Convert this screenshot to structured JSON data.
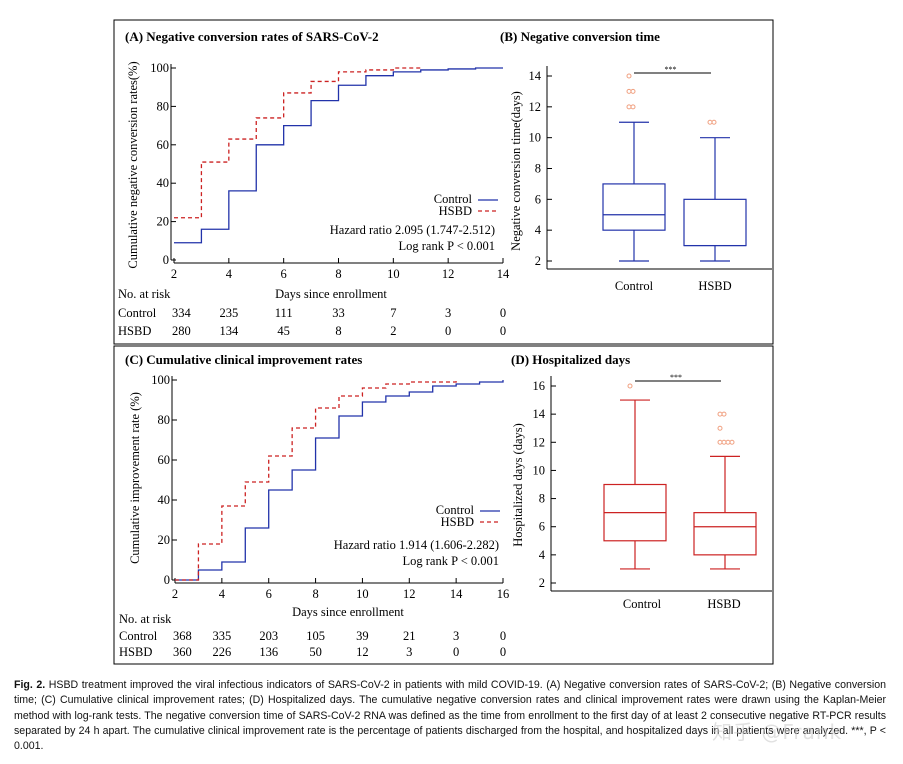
{
  "figure": {
    "panels": {
      "A": {
        "title": "(A) Negative conversion rates of SARS-CoV-2",
        "ylabel": "Cumulative negative conversion rates(%)",
        "xlabel": "Days since enrollment",
        "legend": [
          "Control",
          "HSBD"
        ],
        "hazard": "Hazard ratio 2.095 (1.747-2.512)",
        "logrank": "Log rank P < 0.001",
        "risk_header": "No. at risk",
        "risk_rows": [
          {
            "label": "Control",
            "values": [
              "334",
              "235",
              "111",
              "33",
              "7",
              "3",
              "0"
            ]
          },
          {
            "label": "HSBD",
            "values": [
              "280",
              "134",
              "45",
              "8",
              "2",
              "0",
              "0"
            ]
          }
        ]
      },
      "B": {
        "title": "(B) Negative conversion time",
        "ylabel": "Negative conversion time(days)",
        "sig": "***",
        "groups": [
          "Control",
          "HSBD"
        ]
      },
      "C": {
        "title": "(C) Cumulative clinical improvement rates",
        "ylabel": "Cumulative improvement rate (%)",
        "xlabel": "Days since enrollment",
        "legend": [
          "Control",
          "HSBD"
        ],
        "hazard": "Hazard ratio 1.914 (1.606-2.282)",
        "logrank": "Log rank P < 0.001",
        "risk_header": "No. at risk",
        "risk_rows": [
          {
            "label": "Control",
            "values": [
              "368",
              "335",
              "203",
              "105",
              "39",
              "21",
              "3",
              "0"
            ]
          },
          {
            "label": "HSBD",
            "values": [
              "360",
              "226",
              "136",
              "50",
              "12",
              "3",
              "0",
              "0"
            ]
          }
        ]
      },
      "D": {
        "title": "(D) Hospitalized days",
        "ylabel": "Hospitalized days (days)",
        "sig": "***",
        "groups": [
          "Control",
          "HSBD"
        ]
      }
    },
    "colors": {
      "control": "#2233aa",
      "hsbd": "#cc2222",
      "outlier": "#f0a080"
    }
  },
  "caption": {
    "label": "Fig. 2.",
    "text": "HSBD treatment improved the viral infectious indicators of SARS-CoV-2 in patients with mild COVID-19. (A) Negative conversion rates of SARS-CoV-2; (B) Negative conversion time; (C) Cumulative clinical improvement rates; (D) Hospitalized days. The cumulative negative conversion rates and clinical improvement rates were drawn using the Kaplan-Meier method with log-rank tests. The negative conversion time of SARS-CoV-2 RNA was defined as the time from enrollment to the first day of at least 2 consecutive negative RT-PCR results separated by 24 h apart. The cumulative clinical improvement rate is the percentage of patients discharged from the hospital, and hospitalized days in all patients were analyzed. ***, P < 0.001.",
    "watermark": "知乎 @Frank"
  },
  "chart_data": [
    {
      "type": "line",
      "title": "(A) Negative conversion rates of SARS-CoV-2",
      "xlabel": "Days since enrollment",
      "ylabel": "Cumulative negative conversion rates(%)",
      "xlim": [
        2,
        14
      ],
      "ylim": [
        0,
        100
      ],
      "xticks": [
        2,
        4,
        6,
        8,
        10,
        12,
        14
      ],
      "yticks": [
        0,
        20,
        40,
        60,
        80,
        100
      ],
      "step": true,
      "legend": "center-right",
      "series": [
        {
          "name": "Control",
          "x": [
            2,
            3,
            4,
            5,
            6,
            7,
            8,
            9,
            10,
            11,
            12,
            13,
            14
          ],
          "values": [
            9,
            16,
            36,
            60,
            70,
            83,
            91,
            96,
            98,
            99,
            99.5,
            100,
            100
          ]
        },
        {
          "name": "HSBD",
          "x": [
            2,
            3,
            4,
            5,
            6,
            7,
            8,
            9,
            10,
            11
          ],
          "values": [
            22,
            51,
            63,
            74,
            87,
            93,
            98,
            99,
            100,
            100
          ]
        }
      ]
    },
    {
      "type": "box",
      "title": "(B) Negative conversion time",
      "ylabel": "Negative conversion time(days)",
      "ylim": [
        2,
        14
      ],
      "yticks": [
        2,
        4,
        6,
        8,
        10,
        12,
        14
      ],
      "categories": [
        "Control",
        "HSBD"
      ],
      "boxes": [
        {
          "min": 2,
          "q1": 4,
          "median": 5,
          "q3": 7,
          "max": 11,
          "outliers": [
            12,
            12,
            13,
            13,
            14
          ]
        },
        {
          "min": 2,
          "q1": 3,
          "median": 3,
          "q3": 6,
          "max": 10,
          "outliers": [
            11,
            11
          ]
        }
      ],
      "significance": "***"
    },
    {
      "type": "line",
      "title": "(C) Cumulative clinical improvement rates",
      "xlabel": "Days since enrollment",
      "ylabel": "Cumulative improvement rate (%)",
      "xlim": [
        2,
        16
      ],
      "ylim": [
        0,
        100
      ],
      "xticks": [
        2,
        4,
        6,
        8,
        10,
        12,
        14,
        16
      ],
      "yticks": [
        0,
        20,
        40,
        60,
        80,
        100
      ],
      "step": true,
      "legend": "center-right",
      "series": [
        {
          "name": "Control",
          "x": [
            2,
            3,
            4,
            5,
            6,
            7,
            8,
            9,
            10,
            11,
            12,
            13,
            14,
            15,
            16
          ],
          "values": [
            0,
            5,
            9,
            26,
            45,
            55,
            71,
            82,
            89,
            92,
            94,
            97,
            98,
            99,
            100
          ]
        },
        {
          "name": "HSBD",
          "x": [
            2,
            3,
            4,
            5,
            6,
            7,
            8,
            9,
            10,
            11,
            12,
            13,
            14
          ],
          "values": [
            0,
            18,
            37,
            49,
            62,
            76,
            86,
            92,
            96,
            98,
            99,
            99,
            100
          ]
        }
      ]
    },
    {
      "type": "box",
      "title": "(D) Hospitalized days",
      "ylabel": "Hospitalized days (days)",
      "ylim": [
        2,
        16
      ],
      "yticks": [
        2,
        4,
        6,
        8,
        10,
        12,
        14,
        16
      ],
      "categories": [
        "Control",
        "HSBD"
      ],
      "boxes": [
        {
          "min": 3,
          "q1": 5,
          "median": 7,
          "q3": 9,
          "max": 15,
          "outliers": [
            16
          ]
        },
        {
          "min": 3,
          "q1": 4,
          "median": 6,
          "q3": 7,
          "max": 11,
          "outliers": [
            12,
            12,
            12,
            12,
            13,
            14,
            14
          ]
        }
      ],
      "significance": "***"
    }
  ]
}
